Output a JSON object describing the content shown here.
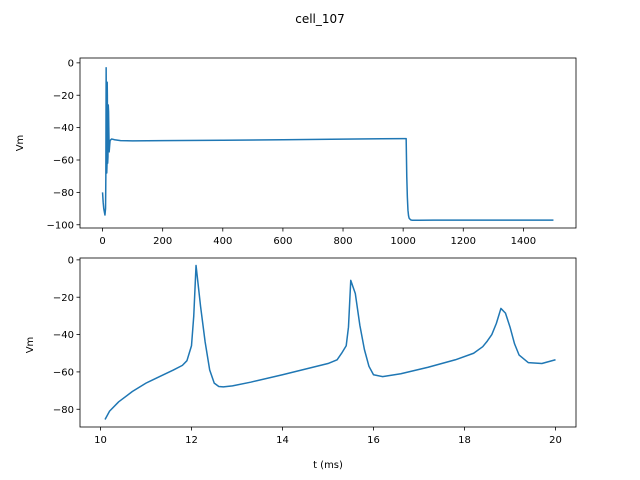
{
  "figure": {
    "suptitle": "cell_107",
    "line_color": "#1f77b4"
  },
  "chart_data": [
    {
      "type": "line",
      "title": "",
      "xlabel": "",
      "ylabel": "Vm",
      "xlim": [
        -75,
        1575
      ],
      "ylim": [
        -102,
        3
      ],
      "xticks": [
        0,
        200,
        400,
        600,
        800,
        1000,
        1200,
        1400
      ],
      "xtick_labels": [
        "0",
        "200",
        "400",
        "600",
        "800",
        "1000",
        "1200",
        "1400"
      ],
      "yticks": [
        0,
        -20,
        -40,
        -60,
        -80,
        -100
      ],
      "ytick_labels": [
        "0",
        "−20",
        "−40",
        "−60",
        "−80",
        "−100"
      ],
      "grid": false,
      "series": [
        {
          "x": [
            0,
            2,
            4,
            6,
            8,
            10,
            11,
            12,
            13,
            14,
            15,
            15.5,
            16,
            16.5,
            17,
            18,
            19,
            20,
            22,
            25,
            30,
            40,
            60,
            100,
            200,
            400,
            600,
            800,
            1000,
            1010,
            1012,
            1014,
            1016,
            1018,
            1020,
            1025,
            1030,
            1040,
            1050,
            1100,
            1200,
            1300,
            1400,
            1500
          ],
          "y": [
            -80,
            -86,
            -90,
            -92,
            -94,
            -90,
            -70,
            -3,
            -45,
            -68,
            -62,
            -12,
            -20,
            -50,
            -62,
            -58,
            -26,
            -30,
            -55,
            -48,
            -47,
            -47.5,
            -48,
            -48.2,
            -48,
            -47.8,
            -47.5,
            -47.1,
            -46.8,
            -46.8,
            -70,
            -83,
            -91,
            -94.5,
            -96,
            -97,
            -97.2,
            -97.2,
            -97.2,
            -97.1,
            -97.1,
            -97.1,
            -97.1,
            -97.1
          ]
        }
      ]
    },
    {
      "type": "line",
      "title": "",
      "xlabel": "t (ms)",
      "ylabel": "Vm",
      "xlim": [
        9.55,
        20.45
      ],
      "ylim": [
        -89.5,
        1
      ],
      "xticks": [
        10,
        12,
        14,
        16,
        18,
        20
      ],
      "xtick_labels": [
        "10",
        "12",
        "14",
        "16",
        "18",
        "20"
      ],
      "yticks": [
        0,
        -20,
        -40,
        -60,
        -80
      ],
      "ytick_labels": [
        "0",
        "−20",
        "−40",
        "−60",
        "−80"
      ],
      "grid": false,
      "series": [
        {
          "x": [
            10.1,
            10.2,
            10.4,
            10.7,
            11.0,
            11.3,
            11.6,
            11.8,
            11.9,
            12.0,
            12.05,
            12.1,
            12.2,
            12.3,
            12.4,
            12.5,
            12.6,
            12.7,
            12.9,
            13.3,
            14.0,
            14.5,
            15.0,
            15.2,
            15.3,
            15.4,
            15.45,
            15.5,
            15.6,
            15.7,
            15.8,
            15.9,
            16.0,
            16.2,
            16.6,
            17.2,
            17.8,
            18.2,
            18.4,
            18.5,
            18.6,
            18.7,
            18.8,
            18.9,
            19.0,
            19.1,
            19.2,
            19.4,
            19.7,
            20.0
          ],
          "y": [
            -85.5,
            -81,
            -76,
            -70.5,
            -66,
            -62.5,
            -59,
            -56.5,
            -54,
            -46,
            -30,
            -3,
            -25,
            -44,
            -59,
            -66,
            -67.8,
            -68,
            -67.5,
            -65.5,
            -61.5,
            -58.5,
            -55.5,
            -53.5,
            -50,
            -46,
            -36,
            -11,
            -18,
            -35,
            -48,
            -57,
            -61.5,
            -62.5,
            -61,
            -57.5,
            -53.5,
            -50,
            -46.5,
            -43.5,
            -40,
            -34,
            -26,
            -28.5,
            -36,
            -45,
            -51,
            -55,
            -55.5,
            -53.5
          ]
        }
      ]
    }
  ]
}
